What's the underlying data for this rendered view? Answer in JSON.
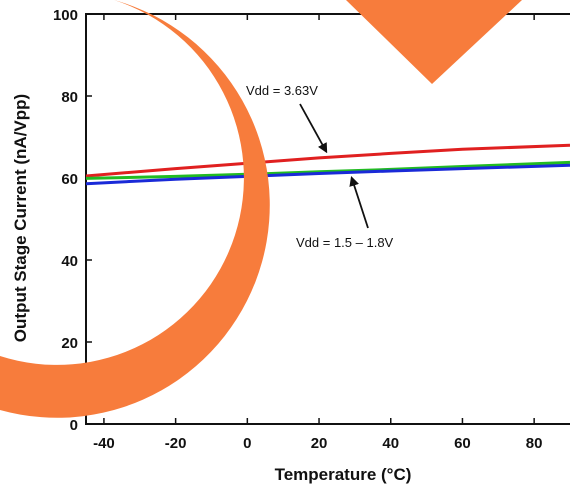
{
  "chart_data": {
    "type": "line",
    "xlabel": "Temperature (°C)",
    "ylabel": "Output Stage Current (nA/Vpp)",
    "xlim": [
      -45,
      90
    ],
    "ylim": [
      0,
      100
    ],
    "x_ticks": [
      "-40",
      "-20",
      "0",
      "20",
      "40",
      "60",
      "80"
    ],
    "y_ticks": [
      "0",
      "20",
      "40",
      "60",
      "80",
      "100"
    ],
    "series": [
      {
        "color": "#e02020",
        "x": [
          -45,
          -20,
          0,
          20,
          40,
          60,
          90
        ],
        "y": [
          60.5,
          62.3,
          63.6,
          64.9,
          66.0,
          67.0,
          68.0
        ]
      },
      {
        "color": "#22bb22",
        "x": [
          -45,
          -20,
          0,
          20,
          40,
          60,
          90
        ],
        "y": [
          59.9,
          60.4,
          60.9,
          61.5,
          62.1,
          62.8,
          63.8
        ]
      },
      {
        "color": "#1a2ad8",
        "x": [
          -45,
          -20,
          0,
          20,
          40,
          60,
          90
        ],
        "y": [
          58.6,
          59.7,
          60.4,
          61.1,
          61.7,
          62.3,
          63.1
        ]
      }
    ],
    "annotations": [
      {
        "text": "Vdd = 3.63V",
        "x": 20,
        "y": 82,
        "arrow_to": [
          22,
          65
        ]
      },
      {
        "text": "Vdd = 1.5 – 1.8V",
        "x": 28,
        "y": 45,
        "arrow_to": [
          28,
          61.5
        ]
      }
    ],
    "overlay_colors": {
      "shape": "#f77c3c"
    }
  }
}
